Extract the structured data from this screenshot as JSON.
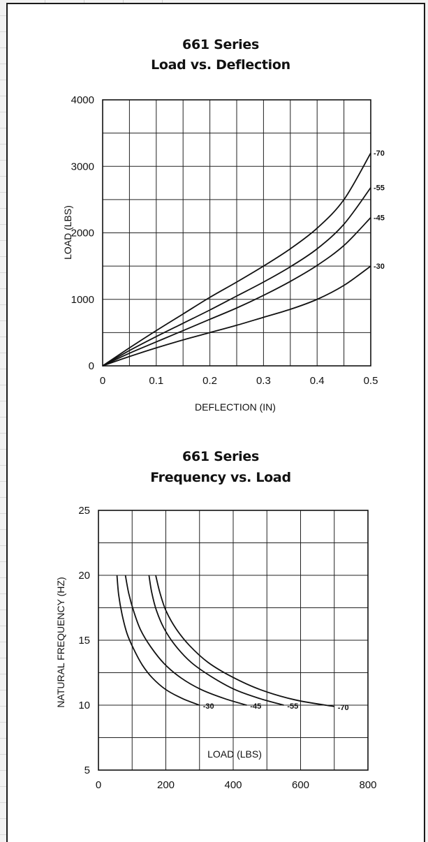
{
  "chart_data": [
    {
      "type": "line",
      "title": "661 Series",
      "subtitle": "Load vs. Deflection",
      "xlabel": "DEFLECTION (IN)",
      "ylabel": "LOAD (LBS)",
      "xlim": [
        0,
        0.5
      ],
      "ylim": [
        0,
        4000
      ],
      "xticks": [
        "0",
        "0.1",
        "0.2",
        "0.3",
        "0.4",
        "0.5"
      ],
      "yticks": [
        "0",
        "1000",
        "2000",
        "3000",
        "4000"
      ],
      "grid": true,
      "series": [
        {
          "name": "-70",
          "x": [
            0,
            0.05,
            0.1,
            0.15,
            0.2,
            0.25,
            0.3,
            0.35,
            0.4,
            0.45,
            0.5
          ],
          "y": [
            0,
            270,
            530,
            780,
            1030,
            1260,
            1500,
            1760,
            2070,
            2500,
            3200
          ]
        },
        {
          "name": "-55",
          "x": [
            0,
            0.05,
            0.1,
            0.15,
            0.2,
            0.25,
            0.3,
            0.35,
            0.4,
            0.45,
            0.5
          ],
          "y": [
            0,
            230,
            440,
            640,
            840,
            1050,
            1260,
            1490,
            1760,
            2130,
            2680
          ]
        },
        {
          "name": "-45",
          "x": [
            0,
            0.05,
            0.1,
            0.15,
            0.2,
            0.25,
            0.3,
            0.35,
            0.4,
            0.45,
            0.5
          ],
          "y": [
            0,
            190,
            360,
            530,
            700,
            870,
            1060,
            1270,
            1510,
            1810,
            2230
          ]
        },
        {
          "name": "-30",
          "x": [
            0,
            0.05,
            0.1,
            0.15,
            0.2,
            0.25,
            0.3,
            0.35,
            0.4,
            0.45,
            0.5
          ],
          "y": [
            0,
            140,
            270,
            390,
            500,
            610,
            730,
            850,
            1000,
            1210,
            1500
          ]
        }
      ]
    },
    {
      "type": "line",
      "title": "661 Series",
      "subtitle": "Frequency vs. Load",
      "xlabel": "LOAD (LBS)",
      "ylabel": "NATURAL FREQUENCY (HZ)",
      "xlim": [
        0,
        800
      ],
      "ylim": [
        5,
        25
      ],
      "xticks": [
        "0",
        "200",
        "400",
        "600",
        "800"
      ],
      "yticks": [
        "5",
        "10",
        "15",
        "20",
        "25"
      ],
      "grid": true,
      "series": [
        {
          "name": "-30",
          "x": [
            55,
            60,
            70,
            85,
            105,
            130,
            160,
            200,
            250,
            300
          ],
          "y": [
            20,
            18.5,
            17,
            15.5,
            14.3,
            13.1,
            12.1,
            11.2,
            10.5,
            10
          ]
        },
        {
          "name": "-45",
          "x": [
            80,
            90,
            105,
            125,
            155,
            195,
            245,
            305,
            375,
            440
          ],
          "y": [
            20,
            18.6,
            17.2,
            15.8,
            14.5,
            13.2,
            12.1,
            11.2,
            10.5,
            10
          ]
        },
        {
          "name": "-55",
          "x": [
            150,
            158,
            172,
            195,
            228,
            275,
            335,
            405,
            480,
            550
          ],
          "y": [
            20,
            18.7,
            17.3,
            15.9,
            14.6,
            13.3,
            12.2,
            11.2,
            10.5,
            10
          ]
        },
        {
          "name": "-70",
          "x": [
            170,
            182,
            200,
            230,
            270,
            325,
            395,
            480,
            585,
            700
          ],
          "y": [
            20,
            18.7,
            17.3,
            15.9,
            14.6,
            13.3,
            12.2,
            11.2,
            10.4,
            9.9
          ]
        }
      ]
    }
  ]
}
